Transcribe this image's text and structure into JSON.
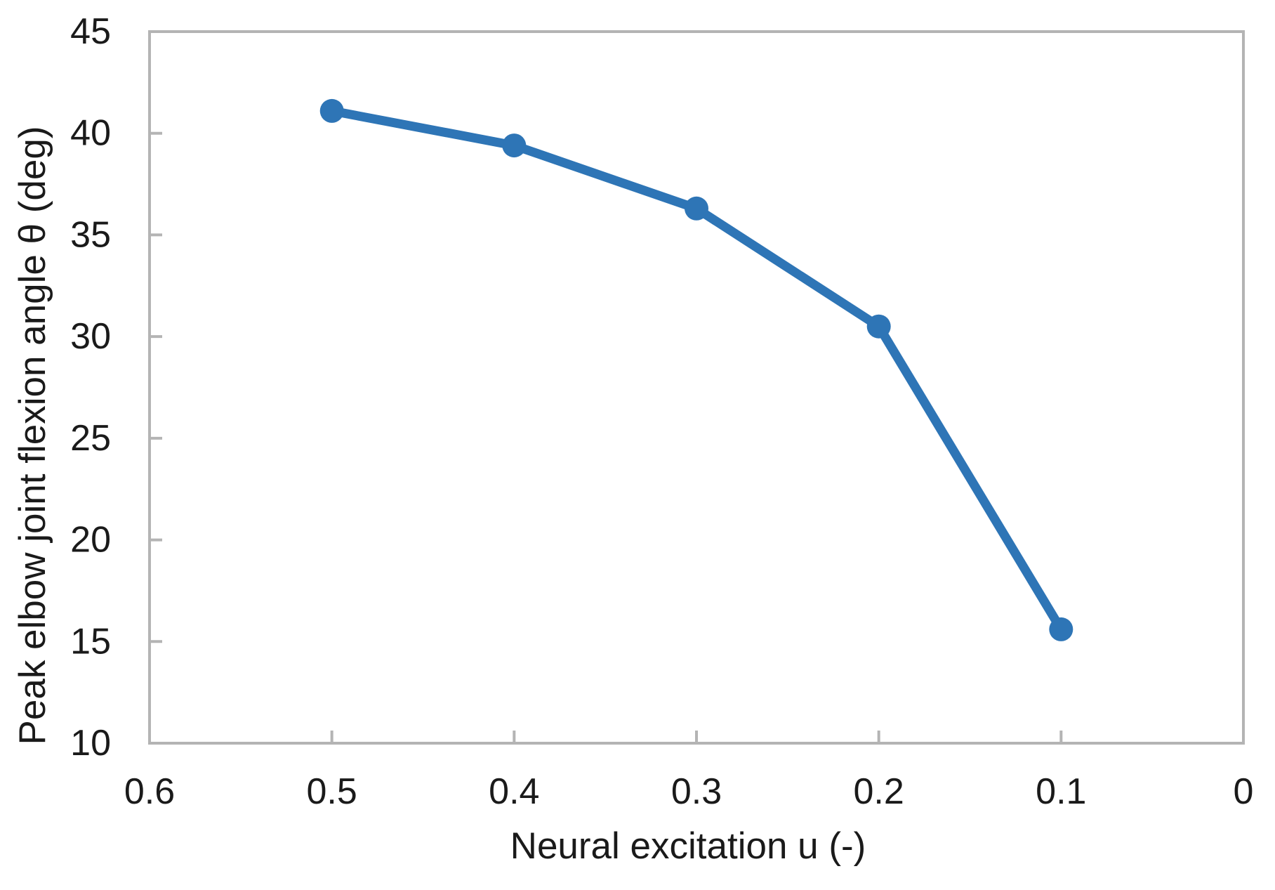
{
  "chart_data": {
    "type": "line",
    "xlabel": "Neural excitation u (-)",
    "ylabel": "Peak elbow joint flexion angle θ (deg)",
    "x": [
      0.5,
      0.4,
      0.3,
      0.2,
      0.1
    ],
    "values": [
      41.1,
      39.4,
      36.3,
      30.5,
      15.6
    ],
    "xlim": [
      0.6,
      0
    ],
    "ylim": [
      10,
      45
    ],
    "x_axis_reversed": true,
    "x_ticks": [
      0.6,
      0.5,
      0.4,
      0.3,
      0.2,
      0.1,
      0
    ],
    "x_tick_labels": [
      "0.6",
      "0.5",
      "0.4",
      "0.3",
      "0.2",
      "0.1",
      "0"
    ],
    "y_ticks": [
      10,
      15,
      20,
      25,
      30,
      35,
      40,
      45
    ],
    "y_tick_labels": [
      "10",
      "15",
      "20",
      "25",
      "30",
      "35",
      "40",
      "45"
    ],
    "grid": false,
    "marker": "circle",
    "legend_position": "none",
    "colors": {
      "series": "#2E75B6",
      "axis_frame": "#B4B4B4",
      "tick": "#B4B4B4",
      "text": "#1A1A1A"
    }
  }
}
